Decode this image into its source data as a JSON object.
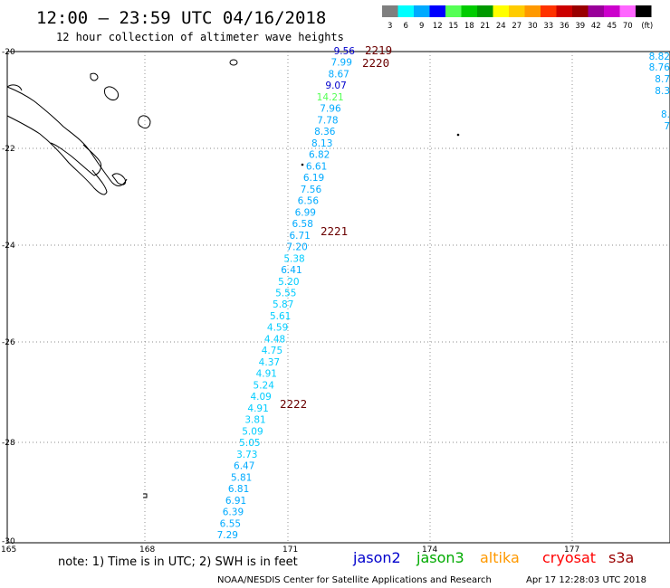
{
  "header": {
    "title": "12:00 — 23:59 UTC 04/16/2018",
    "subtitle": "12 hour collection of altimeter wave heights"
  },
  "legend": {
    "colors": [
      "#7f7f7f",
      "#00ffff",
      "#00aaff",
      "#0000ff",
      "#55ff55",
      "#00cc00",
      "#009900",
      "#ffff00",
      "#ffcc00",
      "#ff9900",
      "#ff3300",
      "#cc0000",
      "#990000",
      "#990099",
      "#cc00cc",
      "#ff66ff",
      "#000000"
    ],
    "labels": [
      "3",
      "6",
      "9",
      "12",
      "15",
      "18",
      "21",
      "24",
      "27",
      "30",
      "33",
      "36",
      "39",
      "42",
      "45",
      "70",
      "(ft)"
    ]
  },
  "axes": {
    "lat_labels": [
      "-20",
      "-22",
      "-24",
      "-26",
      "-28",
      "-30"
    ],
    "lon_labels": [
      "165",
      "168",
      "171",
      "174",
      "177"
    ]
  },
  "track": {
    "values": [
      "9.56",
      "7.99",
      "8.67",
      "9.07",
      "14.21",
      "7.96",
      "7.78",
      "8.36",
      "8.13",
      "6.82",
      "6.61",
      "6.19",
      "7.56",
      "6.56",
      "6.99",
      "6.58",
      "6.71",
      "7.20",
      "5.38",
      "6.41",
      "5.20",
      "5.55",
      "5.87",
      "5.61",
      "4.59",
      "4.48",
      "4.75",
      "4.37",
      "4.91",
      "5.24",
      "4.09",
      "4.91",
      "3.81",
      "5.09",
      "5.05",
      "3.73",
      "6.47",
      "5.81",
      "6.81",
      "6.91",
      "6.39",
      "6.55",
      "7.29"
    ],
    "colors": [
      "#0000cc",
      "#00aaff",
      "#00aaff",
      "#0000cc",
      "#55ff55",
      "#00aaff",
      "#00aaff",
      "#00aaff",
      "#00aaff",
      "#00aaff",
      "#00aaff",
      "#00aaff",
      "#00aaff",
      "#00aaff",
      "#00aaff",
      "#00aaff",
      "#00aaff",
      "#00aaff",
      "#00ccff",
      "#00aaff",
      "#00ccff",
      "#00ccff",
      "#00ccff",
      "#00ccff",
      "#00ccff",
      "#00ccff",
      "#00ccff",
      "#00ccff",
      "#00ccff",
      "#00ccff",
      "#00ccff",
      "#00ccff",
      "#00ccff",
      "#00ccff",
      "#00ccff",
      "#00ccff",
      "#00aaff",
      "#00aaff",
      "#00aaff",
      "#00aaff",
      "#00aaff",
      "#00aaff",
      "#00aaff"
    ]
  },
  "right_track": {
    "values": [
      "8.82",
      "8.76",
      "8.7",
      "8.3",
      "8.",
      "7"
    ],
    "color": "#00aaff"
  },
  "passes": [
    "2219",
    "2220",
    "2221",
    "2222"
  ],
  "footer": {
    "note": "note: 1) Time is in UTC; 2) SWH is in feet",
    "satellites": [
      {
        "name": "jason2",
        "color": "#0000cc"
      },
      {
        "name": "jason3",
        "color": "#00aa00"
      },
      {
        "name": "altika",
        "color": "#ff9900"
      },
      {
        "name": "cryosat",
        "color": "#ff0000"
      },
      {
        "name": "s3a",
        "color": "#990000"
      }
    ],
    "credit": "NOAA/NESDIS Center for Satellite Applications and Research",
    "timestamp": "Apr 17 12:28:03 UTC 2018"
  }
}
